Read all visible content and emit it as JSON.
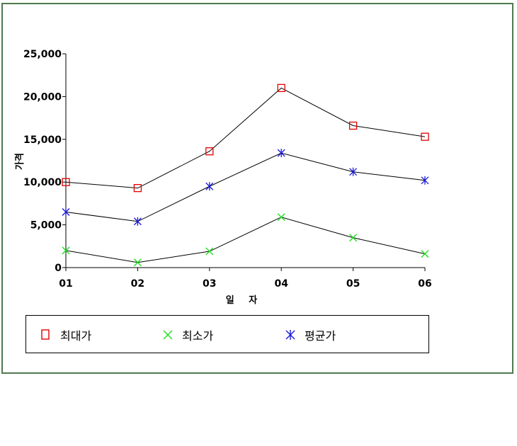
{
  "chart_data": {
    "type": "line",
    "categories": [
      "01",
      "02",
      "03",
      "04",
      "05",
      "06"
    ],
    "xlabel": "일 자",
    "ylabel": "가격",
    "ylim": [
      0,
      25000
    ],
    "yticks": [
      "0",
      "5,000",
      "10,000",
      "15,000",
      "20,000",
      "25,000"
    ],
    "ytick_values": [
      0,
      5000,
      10000,
      15000,
      20000,
      25000
    ],
    "legend_position": "bottom",
    "series": [
      {
        "name": "최대가",
        "marker": "square",
        "color": "#e00000",
        "values": [
          10000,
          9300,
          13600,
          21000,
          16600,
          15300
        ]
      },
      {
        "name": "최소가",
        "marker": "x",
        "color": "#22dd22",
        "values": [
          2000,
          600,
          1900,
          5900,
          3500,
          1600
        ]
      },
      {
        "name": "평균가",
        "marker": "asterisk",
        "color": "#1a1ad8",
        "values": [
          6500,
          5400,
          9500,
          13400,
          11200,
          10200
        ]
      }
    ]
  }
}
